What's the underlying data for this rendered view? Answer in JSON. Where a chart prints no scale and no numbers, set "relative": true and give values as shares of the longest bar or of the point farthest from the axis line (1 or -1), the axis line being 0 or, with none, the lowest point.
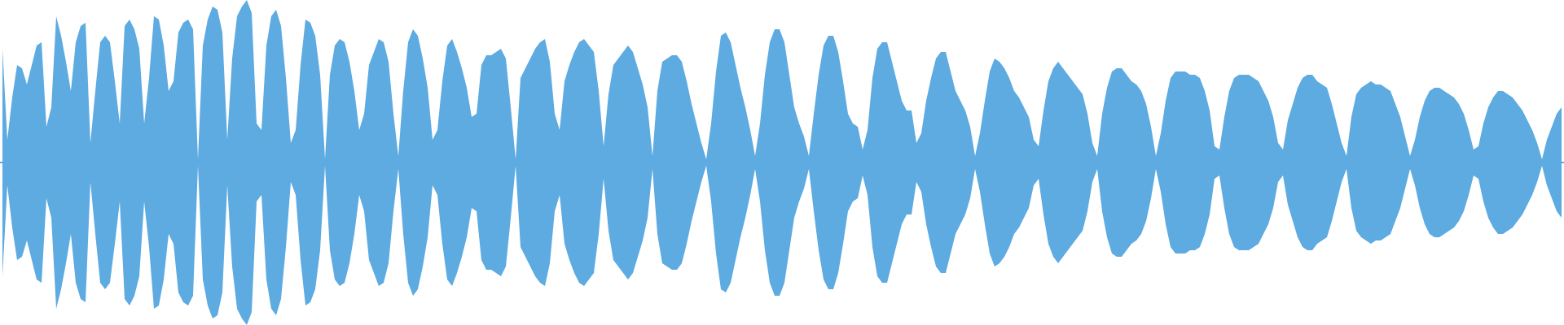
{
  "chart_data": {
    "type": "area",
    "relative": true,
    "ref_lines": [
      {
        "axis": "y",
        "value": 0,
        "color": "#5dabe1"
      }
    ],
    "categories": [
      null,
      null,
      null,
      null,
      null,
      null,
      null,
      null,
      null,
      null,
      null,
      null,
      null,
      null,
      null,
      null,
      null,
      null,
      null,
      null,
      null,
      null,
      null,
      null,
      null,
      null,
      null,
      null,
      null,
      null,
      null,
      null,
      null,
      null,
      null,
      null,
      null,
      null,
      null,
      null,
      null,
      null,
      null,
      null,
      null,
      null,
      null,
      null,
      null,
      null,
      null,
      null,
      null,
      null,
      null,
      null,
      null,
      null,
      null,
      null,
      null,
      null,
      null,
      null,
      null,
      null,
      null,
      null,
      null,
      null,
      null,
      null,
      null,
      null,
      null,
      null,
      null,
      null,
      null,
      null,
      null,
      null,
      null,
      null,
      null,
      null,
      null,
      null,
      null,
      null,
      null,
      null,
      null,
      null,
      null,
      null,
      null,
      null,
      null,
      null,
      null,
      null,
      null,
      null,
      null,
      null,
      null,
      null,
      null,
      null,
      null,
      null,
      null,
      null,
      null,
      null,
      null,
      null,
      null,
      null,
      null,
      null,
      null,
      null,
      null,
      null,
      null,
      null,
      null,
      null,
      null,
      null,
      null,
      null,
      null,
      null,
      null,
      null,
      null,
      null,
      null,
      null,
      null,
      null,
      null,
      null,
      null,
      null,
      null,
      null,
      null,
      null,
      null,
      null,
      null,
      null,
      null,
      null,
      null,
      null,
      null,
      null,
      null,
      null,
      null,
      null,
      null,
      null,
      null,
      null,
      null,
      null,
      null,
      null,
      null,
      null,
      null,
      null,
      null,
      null,
      null,
      null,
      null,
      null,
      null,
      null,
      null,
      null,
      null,
      null,
      null,
      null,
      null,
      null,
      null,
      null,
      null,
      null,
      null,
      null,
      null,
      null,
      null,
      null,
      null,
      null,
      null,
      null,
      null,
      null,
      null,
      null,
      null,
      null,
      null,
      null,
      null,
      null,
      null,
      null,
      null,
      null,
      null,
      null,
      null,
      null,
      null,
      null,
      null,
      null,
      null,
      null,
      null,
      null,
      null,
      null,
      null,
      null,
      null,
      null,
      null,
      null,
      null,
      null,
      null,
      null,
      null,
      null,
      null,
      null,
      null,
      null,
      null,
      null,
      null,
      null,
      null,
      null,
      null,
      null,
      null,
      null,
      null,
      null,
      null,
      null,
      null,
      null,
      null,
      null,
      null,
      null,
      null,
      null,
      null,
      null,
      null,
      null,
      null,
      null,
      null,
      null,
      null,
      null,
      null,
      null,
      null,
      null,
      null,
      null,
      null,
      null,
      null,
      null,
      null,
      null,
      null,
      null,
      null,
      null,
      null,
      null,
      null,
      null,
      null,
      null,
      null,
      null,
      null,
      null,
      null,
      null,
      null,
      null,
      null,
      null,
      null,
      null,
      null,
      null
    ],
    "series": [
      {
        "color": "#5dabe1",
        "values": [
          0.7,
          0.14,
          0.4,
          0.6,
          0.58,
          0.48,
          0.6,
          0.72,
          0.74,
          0.22,
          0.34,
          0.9,
          0.78,
          0.62,
          0.44,
          0.74,
          0.84,
          0.86,
          0.12,
          0.44,
          0.74,
          0.78,
          0.74,
          0.5,
          0.24,
          0.84,
          0.88,
          0.82,
          0.7,
          0.24,
          0.52,
          0.9,
          0.88,
          0.72,
          0.44,
          0.5,
          0.8,
          0.86,
          0.88,
          0.82,
          0.02,
          0.72,
          0.88,
          0.96,
          0.94,
          0.8,
          0.14,
          0.64,
          0.9,
          0.96,
          1.0,
          0.92,
          0.24,
          0.2,
          0.72,
          0.9,
          0.94,
          0.84,
          0.52,
          0.12,
          0.2,
          0.6,
          0.88,
          0.86,
          0.78,
          0.54,
          0.02,
          0.54,
          0.72,
          0.76,
          0.74,
          0.62,
          0.44,
          0.2,
          0.3,
          0.6,
          0.68,
          0.76,
          0.74,
          0.62,
          0.3,
          0.04,
          0.44,
          0.74,
          0.82,
          0.78,
          0.64,
          0.46,
          0.14,
          0.2,
          0.5,
          0.72,
          0.76,
          0.68,
          0.58,
          0.46,
          0.28,
          0.3,
          0.6,
          0.66,
          0.66,
          0.68,
          0.7,
          0.64,
          0.34,
          0.02,
          0.52,
          0.58,
          0.64,
          0.7,
          0.74,
          0.76,
          0.62,
          0.3,
          0.2,
          0.5,
          0.6,
          0.68,
          0.74,
          0.76,
          0.72,
          0.68,
          0.44,
          0.1,
          0.42,
          0.6,
          0.64,
          0.68,
          0.72,
          0.68,
          0.58,
          0.48,
          0.34,
          0.04,
          0.44,
          0.62,
          0.64,
          0.66,
          0.66,
          0.62,
          0.5,
          0.36,
          0.24,
          0.12,
          0.02,
          0.24,
          0.56,
          0.78,
          0.8,
          0.74,
          0.6,
          0.46,
          0.34,
          0.2,
          0.04,
          0.24,
          0.54,
          0.74,
          0.82,
          0.82,
          0.74,
          0.54,
          0.34,
          0.24,
          0.16,
          0.04,
          0.3,
          0.54,
          0.72,
          0.78,
          0.78,
          0.68,
          0.5,
          0.3,
          0.24,
          0.22,
          0.08,
          0.2,
          0.52,
          0.7,
          0.74,
          0.74,
          0.62,
          0.5,
          0.38,
          0.32,
          0.32,
          0.12,
          0.18,
          0.38,
          0.52,
          0.64,
          0.68,
          0.68,
          0.56,
          0.44,
          0.38,
          0.32,
          0.22,
          0.04,
          0.18,
          0.38,
          0.56,
          0.64,
          0.62,
          0.58,
          0.52,
          0.44,
          0.4,
          0.34,
          0.28,
          0.14,
          0.1,
          0.32,
          0.5,
          0.58,
          0.62,
          0.58,
          0.54,
          0.5,
          0.46,
          0.42,
          0.3,
          0.12,
          0.04,
          0.3,
          0.46,
          0.56,
          0.58,
          0.58,
          0.54,
          0.5,
          0.48,
          0.44,
          0.36,
          0.22,
          0.04,
          0.18,
          0.38,
          0.52,
          0.56,
          0.56,
          0.56,
          0.54,
          0.54,
          0.52,
          0.44,
          0.32,
          0.1,
          0.08,
          0.28,
          0.44,
          0.52,
          0.54,
          0.54,
          0.54,
          0.52,
          0.5,
          0.44,
          0.38,
          0.28,
          0.12,
          0.08,
          0.26,
          0.36,
          0.46,
          0.52,
          0.54,
          0.54,
          0.5,
          0.48,
          0.46,
          0.36,
          0.24,
          0.12,
          0.04,
          0.28,
          0.42,
          0.46,
          0.48,
          0.5,
          0.48,
          0.48,
          0.46,
          0.44,
          0.36,
          0.28,
          0.16,
          0.04,
          0.14,
          0.28,
          0.38,
          0.44,
          0.46,
          0.46,
          0.44,
          0.42,
          0.4,
          0.36,
          0.3,
          0.2,
          0.08,
          0.1,
          0.24,
          0.34,
          0.4,
          0.44,
          0.44,
          0.42,
          0.4,
          0.36,
          0.32,
          0.26,
          0.2,
          0.12,
          0.02,
          0.14,
          0.22,
          0.3,
          0.34
        ]
      },
      {
        "color": "#5dabe1",
        "values": [
          -0.7,
          -0.14,
          -0.4,
          -0.6,
          -0.58,
          -0.48,
          -0.6,
          -0.72,
          -0.74,
          -0.22,
          -0.34,
          -0.9,
          -0.78,
          -0.62,
          -0.44,
          -0.74,
          -0.84,
          -0.86,
          -0.12,
          -0.44,
          -0.74,
          -0.78,
          -0.74,
          -0.5,
          -0.24,
          -0.84,
          -0.88,
          -0.82,
          -0.7,
          -0.24,
          -0.52,
          -0.9,
          -0.88,
          -0.72,
          -0.44,
          -0.5,
          -0.8,
          -0.86,
          -0.88,
          -0.82,
          -0.02,
          -0.72,
          -0.88,
          -0.96,
          -0.94,
          -0.8,
          -0.14,
          -0.64,
          -0.9,
          -0.96,
          -1.0,
          -0.92,
          -0.24,
          -0.2,
          -0.72,
          -0.9,
          -0.94,
          -0.84,
          -0.52,
          -0.12,
          -0.2,
          -0.6,
          -0.88,
          -0.86,
          -0.78,
          -0.54,
          -0.02,
          -0.54,
          -0.72,
          -0.76,
          -0.74,
          -0.62,
          -0.44,
          -0.2,
          -0.3,
          -0.6,
          -0.68,
          -0.76,
          -0.74,
          -0.62,
          -0.3,
          -0.04,
          -0.44,
          -0.74,
          -0.82,
          -0.78,
          -0.64,
          -0.46,
          -0.14,
          -0.2,
          -0.5,
          -0.72,
          -0.76,
          -0.68,
          -0.58,
          -0.46,
          -0.28,
          -0.3,
          -0.6,
          -0.66,
          -0.66,
          -0.68,
          -0.7,
          -0.64,
          -0.34,
          -0.02,
          -0.52,
          -0.58,
          -0.64,
          -0.7,
          -0.74,
          -0.76,
          -0.62,
          -0.3,
          -0.2,
          -0.5,
          -0.6,
          -0.68,
          -0.74,
          -0.76,
          -0.72,
          -0.68,
          -0.44,
          -0.1,
          -0.42,
          -0.6,
          -0.64,
          -0.68,
          -0.72,
          -0.68,
          -0.58,
          -0.48,
          -0.34,
          -0.04,
          -0.44,
          -0.62,
          -0.64,
          -0.66,
          -0.66,
          -0.62,
          -0.5,
          -0.36,
          -0.24,
          -0.12,
          -0.02,
          -0.24,
          -0.56,
          -0.78,
          -0.8,
          -0.74,
          -0.6,
          -0.46,
          -0.34,
          -0.2,
          -0.04,
          -0.24,
          -0.54,
          -0.74,
          -0.82,
          -0.82,
          -0.74,
          -0.54,
          -0.34,
          -0.24,
          -0.16,
          -0.04,
          -0.3,
          -0.54,
          -0.72,
          -0.78,
          -0.78,
          -0.68,
          -0.5,
          -0.3,
          -0.24,
          -0.22,
          -0.08,
          -0.2,
          -0.52,
          -0.7,
          -0.74,
          -0.74,
          -0.62,
          -0.5,
          -0.38,
          -0.32,
          -0.32,
          -0.12,
          -0.18,
          -0.38,
          -0.52,
          -0.64,
          -0.68,
          -0.68,
          -0.56,
          -0.44,
          -0.38,
          -0.32,
          -0.22,
          -0.04,
          -0.18,
          -0.38,
          -0.56,
          -0.64,
          -0.62,
          -0.58,
          -0.52,
          -0.44,
          -0.4,
          -0.34,
          -0.28,
          -0.14,
          -0.1,
          -0.32,
          -0.5,
          -0.58,
          -0.62,
          -0.58,
          -0.54,
          -0.5,
          -0.46,
          -0.42,
          -0.3,
          -0.12,
          -0.04,
          -0.3,
          -0.46,
          -0.56,
          -0.58,
          -0.58,
          -0.54,
          -0.5,
          -0.48,
          -0.44,
          -0.36,
          -0.22,
          -0.04,
          -0.18,
          -0.38,
          -0.52,
          -0.56,
          -0.56,
          -0.56,
          -0.54,
          -0.54,
          -0.52,
          -0.44,
          -0.32,
          -0.1,
          -0.08,
          -0.28,
          -0.44,
          -0.52,
          -0.54,
          -0.54,
          -0.54,
          -0.52,
          -0.5,
          -0.44,
          -0.38,
          -0.28,
          -0.12,
          -0.08,
          -0.26,
          -0.36,
          -0.46,
          -0.52,
          -0.54,
          -0.54,
          -0.5,
          -0.48,
          -0.46,
          -0.36,
          -0.24,
          -0.12,
          -0.04,
          -0.28,
          -0.42,
          -0.46,
          -0.48,
          -0.5,
          -0.48,
          -0.48,
          -0.46,
          -0.44,
          -0.36,
          -0.28,
          -0.16,
          -0.04,
          -0.14,
          -0.28,
          -0.38,
          -0.44,
          -0.46,
          -0.46,
          -0.44,
          -0.42,
          -0.4,
          -0.36,
          -0.3,
          -0.2,
          -0.08,
          -0.1,
          -0.24,
          -0.34,
          -0.4,
          -0.44,
          -0.44,
          -0.42,
          -0.4,
          -0.36,
          -0.32,
          -0.26,
          -0.2,
          -0.12,
          -0.02,
          -0.14,
          -0.22,
          -0.3,
          -0.34
        ]
      }
    ]
  }
}
